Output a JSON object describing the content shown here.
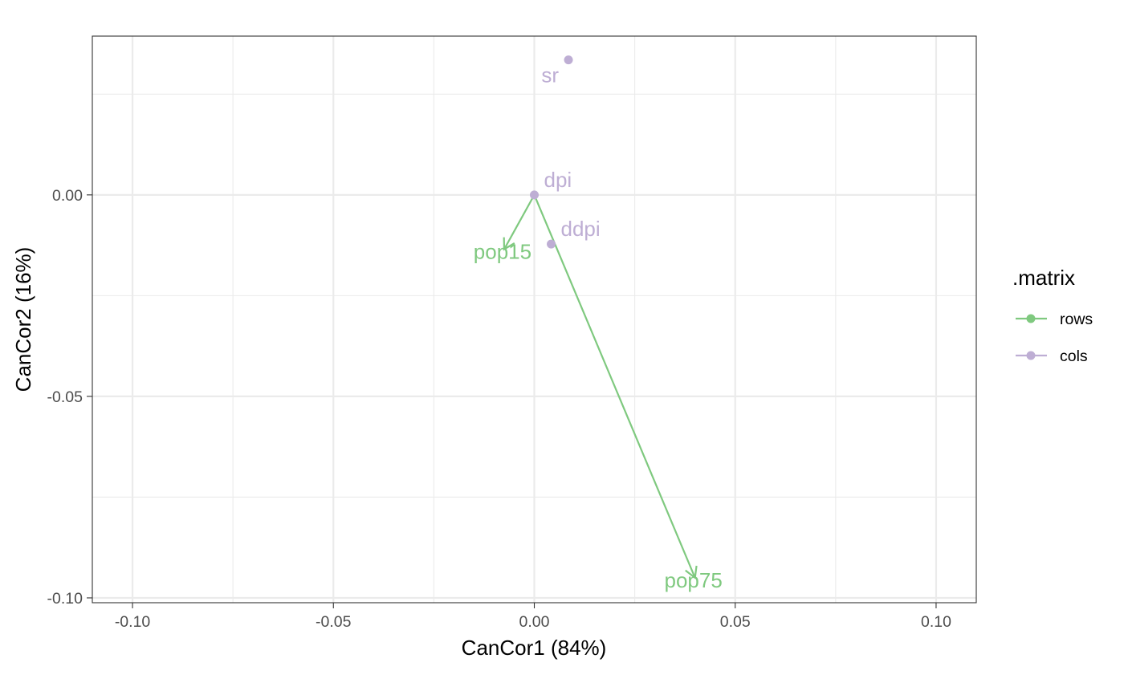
{
  "chart_data": {
    "type": "scatter",
    "title": "",
    "xlabel": "CanCor1 (84%)",
    "ylabel": "CanCor2 (16%)",
    "xlim": [
      -0.11,
      0.11
    ],
    "ylim": [
      -0.1012,
      0.0394
    ],
    "x_ticks": [
      -0.1,
      -0.05,
      0.0,
      0.05,
      0.1
    ],
    "x_tick_labels": [
      "-0.10",
      "-0.05",
      "0.00",
      "0.05",
      "0.10"
    ],
    "y_ticks": [
      -0.1,
      -0.05,
      0.0
    ],
    "y_tick_labels": [
      "-0.10",
      "-0.05",
      "0.00"
    ],
    "grid": true,
    "legend": {
      "title": ".matrix",
      "placement": "right",
      "entries": [
        {
          "name": "rows",
          "color": "#7fc97f"
        },
        {
          "name": "cols",
          "color": "#beaed4"
        }
      ]
    },
    "series": [
      {
        "name": "rows",
        "color": "#7fc97f",
        "mark": "arrow",
        "points": [
          {
            "label": "pop15",
            "x": -0.0075,
            "y": -0.0135
          },
          {
            "label": "pop75",
            "x": 0.04,
            "y": -0.095
          }
        ]
      },
      {
        "name": "cols",
        "color": "#beaed4",
        "mark": "point",
        "points": [
          {
            "label": "sr",
            "x": 0.0085,
            "y": 0.0335
          },
          {
            "label": "dpi",
            "x": 0.0,
            "y": 0.0
          },
          {
            "label": "ddpi",
            "x": 0.0042,
            "y": -0.0122
          }
        ]
      }
    ]
  }
}
